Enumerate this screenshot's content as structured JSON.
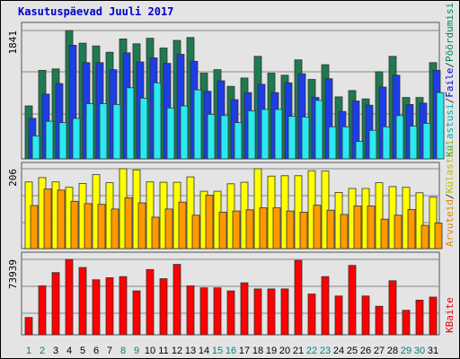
{
  "title": "Kasutuspäevad Juuli 2017",
  "chart_data": [
    {
      "type": "bar",
      "categories": [
        "1",
        "2",
        "3",
        "4",
        "5",
        "6",
        "7",
        "8",
        "9",
        "10",
        "11",
        "12",
        "13",
        "14",
        "15",
        "16",
        "17",
        "18",
        "19",
        "20",
        "21",
        "22",
        "23",
        "24",
        "25",
        "26",
        "27",
        "28",
        "29",
        "30",
        "31"
      ],
      "weekend_days": [
        "1",
        "2",
        "8",
        "9",
        "15",
        "16",
        "22",
        "23",
        "29",
        "30"
      ],
      "y_tick_label": "1841",
      "ylim": [
        0,
        1841
      ],
      "right_labels": [
        "Külastusi",
        "Faile",
        "Pöördumisi"
      ],
      "series": [
        {
          "name": "Pöördumisi",
          "color": "#1f7a4f",
          "values": [
            760,
            1270,
            1290,
            1841,
            1660,
            1620,
            1530,
            1720,
            1650,
            1730,
            1590,
            1700,
            1740,
            1230,
            1280,
            1040,
            1160,
            1470,
            1230,
            1200,
            1420,
            1140,
            1350,
            890,
            980,
            860,
            1250,
            1470,
            880,
            880,
            1380
          ]
        },
        {
          "name": "Faile",
          "color": "#1c3ee6",
          "values": [
            580,
            930,
            1080,
            1630,
            1380,
            1380,
            1280,
            1520,
            1390,
            1450,
            1370,
            1500,
            1400,
            970,
            1120,
            850,
            950,
            1070,
            950,
            1090,
            1220,
            880,
            1150,
            680,
            830,
            770,
            1030,
            1200,
            780,
            800,
            1270
          ]
        },
        {
          "name": "Külastusi",
          "color": "#2ce8f0",
          "values": [
            330,
            540,
            520,
            580,
            790,
            790,
            780,
            1020,
            870,
            1090,
            730,
            760,
            990,
            640,
            620,
            520,
            690,
            710,
            710,
            610,
            600,
            840,
            460,
            460,
            250,
            410,
            460,
            620,
            470,
            510,
            950
          ]
        }
      ]
    },
    {
      "type": "bar",
      "categories": [
        "1",
        "2",
        "3",
        "4",
        "5",
        "6",
        "7",
        "8",
        "9",
        "10",
        "11",
        "12",
        "13",
        "14",
        "15",
        "16",
        "17",
        "18",
        "19",
        "20",
        "21",
        "22",
        "23",
        "24",
        "25",
        "26",
        "27",
        "28",
        "29",
        "30",
        "31"
      ],
      "y_tick_label": "206",
      "ylim": [
        0,
        206
      ],
      "right_labels": [
        "Arvuteid",
        "Külastusi"
      ],
      "series": [
        {
          "name": "Külastusi",
          "color": "#ffff00",
          "values": [
            172,
            183,
            172,
            158,
            168,
            191,
            170,
            206,
            203,
            172,
            171,
            171,
            185,
            148,
            148,
            167,
            171,
            206,
            187,
            188,
            188,
            201,
            200,
            145,
            155,
            155,
            170,
            160,
            158,
            144,
            133
          ]
        },
        {
          "name": "Arvuteid",
          "color": "#ff9900",
          "values": [
            111,
            154,
            151,
            122,
            116,
            114,
            102,
            131,
            118,
            81,
            102,
            120,
            86,
            138,
            94,
            97,
            100,
            105,
            105,
            97,
            94,
            112,
            99,
            88,
            110,
            110,
            76,
            86,
            101,
            60,
            66
          ]
        }
      ]
    },
    {
      "type": "bar",
      "categories": [
        "1",
        "2",
        "3",
        "4",
        "5",
        "6",
        "7",
        "8",
        "9",
        "10",
        "11",
        "12",
        "13",
        "14",
        "15",
        "16",
        "17",
        "18",
        "19",
        "20",
        "21",
        "22",
        "23",
        "24",
        "25",
        "26",
        "27",
        "28",
        "29",
        "30",
        "31"
      ],
      "y_tick_label": "73939",
      "ylim": [
        0,
        73939
      ],
      "right_labels": [
        "KBaite"
      ],
      "series": [
        {
          "name": "KBaite",
          "color": "#ff0000",
          "values": [
            17000,
            48000,
            61000,
            73939,
            66000,
            54000,
            56000,
            57000,
            43000,
            64000,
            55000,
            69000,
            48000,
            46000,
            46000,
            43000,
            51000,
            45000,
            45000,
            45000,
            73000,
            40000,
            57000,
            38000,
            68000,
            38000,
            28000,
            53000,
            24000,
            34000,
            37000
          ]
        }
      ]
    }
  ]
}
